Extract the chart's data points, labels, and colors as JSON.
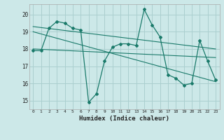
{
  "xlabel": "Humidex (Indice chaleur)",
  "background_color": "#cce8e8",
  "grid_color": "#aacfcf",
  "line_color": "#1a7a6a",
  "xlim": [
    -0.5,
    23.5
  ],
  "ylim": [
    14.5,
    20.6
  ],
  "yticks": [
    15,
    16,
    17,
    18,
    19,
    20
  ],
  "xticks": [
    0,
    1,
    2,
    3,
    4,
    5,
    6,
    7,
    8,
    9,
    10,
    11,
    12,
    13,
    14,
    15,
    16,
    17,
    18,
    19,
    20,
    21,
    22,
    23
  ],
  "series1_x": [
    0,
    1,
    2,
    3,
    4,
    5,
    6,
    7,
    8,
    9,
    10,
    11,
    12,
    13,
    14,
    15,
    16,
    17,
    18,
    19,
    20,
    21,
    22,
    23
  ],
  "series1_y": [
    17.9,
    17.9,
    19.2,
    19.6,
    19.5,
    19.2,
    19.1,
    14.9,
    15.4,
    17.3,
    18.1,
    18.3,
    18.3,
    18.2,
    20.3,
    19.4,
    18.7,
    16.5,
    16.3,
    15.9,
    16.0,
    18.5,
    17.3,
    16.2
  ],
  "trend1_x": [
    0,
    23
  ],
  "trend1_y": [
    19.3,
    18.0
  ],
  "trend2_x": [
    0,
    23
  ],
  "trend2_y": [
    19.0,
    16.1
  ],
  "trend3_x": [
    0,
    23
  ],
  "trend3_y": [
    18.0,
    17.5
  ]
}
